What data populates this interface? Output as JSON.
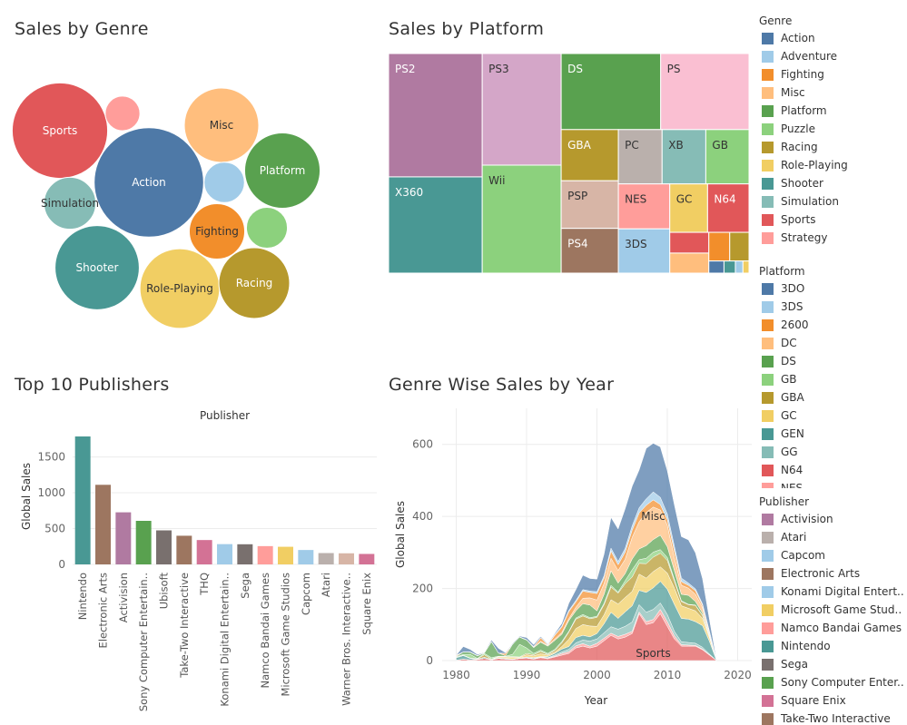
{
  "titles": {
    "genre": "Sales by Genre",
    "platform": "Sales by Platform",
    "publishers": "Top 10 Publishers",
    "year": "Genre Wise Sales by Year"
  },
  "legends": {
    "genre": {
      "title": "Genre",
      "items": [
        {
          "label": "Action",
          "color": "#4e79a7"
        },
        {
          "label": "Adventure",
          "color": "#a0cbe8"
        },
        {
          "label": "Fighting",
          "color": "#f28e2b"
        },
        {
          "label": "Misc",
          "color": "#ffbe7d"
        },
        {
          "label": "Platform",
          "color": "#59a14f"
        },
        {
          "label": "Puzzle",
          "color": "#8cd17d"
        },
        {
          "label": "Racing",
          "color": "#b6992d"
        },
        {
          "label": "Role-Playing",
          "color": "#f1ce63"
        },
        {
          "label": "Shooter",
          "color": "#499894"
        },
        {
          "label": "Simulation",
          "color": "#86bcb6"
        },
        {
          "label": "Sports",
          "color": "#e15759"
        },
        {
          "label": "Strategy",
          "color": "#ff9d9a"
        }
      ]
    },
    "platform": {
      "title": "Platform",
      "items": [
        {
          "label": "3DO",
          "color": "#4e79a7"
        },
        {
          "label": "3DS",
          "color": "#a0cbe8"
        },
        {
          "label": "2600",
          "color": "#f28e2b"
        },
        {
          "label": "DC",
          "color": "#ffbe7d"
        },
        {
          "label": "DS",
          "color": "#59a14f"
        },
        {
          "label": "GB",
          "color": "#8cd17d"
        },
        {
          "label": "GBA",
          "color": "#b6992d"
        },
        {
          "label": "GC",
          "color": "#f1ce63"
        },
        {
          "label": "GEN",
          "color": "#499894"
        },
        {
          "label": "GG",
          "color": "#86bcb6"
        },
        {
          "label": "N64",
          "color": "#e15759"
        },
        {
          "label": "NES",
          "color": "#ff9d9a"
        }
      ]
    },
    "publisher": {
      "title": "Publisher",
      "items": [
        {
          "label": "Activision",
          "color": "#b07aa1"
        },
        {
          "label": "Atari",
          "color": "#bab0ac"
        },
        {
          "label": "Capcom",
          "color": "#a0cbe8"
        },
        {
          "label": "Electronic Arts",
          "color": "#9d7660"
        },
        {
          "label": "Konami Digital Entert..",
          "color": "#a0cbe8"
        },
        {
          "label": "Microsoft Game Stud..",
          "color": "#f1ce63"
        },
        {
          "label": "Namco Bandai Games",
          "color": "#ff9d9a"
        },
        {
          "label": "Nintendo",
          "color": "#499894"
        },
        {
          "label": "Sega",
          "color": "#79706e"
        },
        {
          "label": "Sony Computer Enter..",
          "color": "#59a14f"
        },
        {
          "label": "Square Enix",
          "color": "#d37295"
        },
        {
          "label": "Take-Two Interactive",
          "color": "#9d7660"
        }
      ]
    }
  },
  "chart_data": [
    {
      "type": "bubble",
      "title": "Sales by Genre",
      "items": [
        {
          "label": "Action",
          "value": 1751,
          "color": "#4e79a7"
        },
        {
          "label": "Sports",
          "value": 1331,
          "color": "#e15759"
        },
        {
          "label": "Shooter",
          "value": 1037,
          "color": "#499894"
        },
        {
          "label": "Role-Playing",
          "value": 927,
          "color": "#f1ce63"
        },
        {
          "label": "Platform",
          "value": 831,
          "color": "#59a14f"
        },
        {
          "label": "Misc",
          "value": 810,
          "color": "#ffbe7d"
        },
        {
          "label": "Racing",
          "value": 732,
          "color": "#b6992d"
        },
        {
          "label": "Fighting",
          "value": 449,
          "color": "#f28e2b"
        },
        {
          "label": "Simulation",
          "value": 393,
          "color": "#86bcb6"
        },
        {
          "label": "Puzzle",
          "value": 245,
          "color": "#8cd17d"
        },
        {
          "label": "Adventure",
          "value": 239,
          "color": "#a0cbe8"
        },
        {
          "label": "Strategy",
          "value": 176,
          "color": "#ff9d9a"
        }
      ]
    },
    {
      "type": "treemap",
      "title": "Sales by Platform",
      "items": [
        {
          "label": "PS2",
          "value": 1255,
          "color": "#b07aa1"
        },
        {
          "label": "X360",
          "value": 979,
          "color": "#499894"
        },
        {
          "label": "PS3",
          "value": 957,
          "color": "#d4a6c8"
        },
        {
          "label": "Wii",
          "value": 926,
          "color": "#8cd17d"
        },
        {
          "label": "DS",
          "value": 822,
          "color": "#59a14f"
        },
        {
          "label": "PS",
          "value": 730,
          "color": "#fabfd2"
        },
        {
          "label": "GBA",
          "value": 318,
          "color": "#b6992d"
        },
        {
          "label": "PSP",
          "value": 296,
          "color": "#d7b5a6"
        },
        {
          "label": "PS4",
          "value": 278,
          "color": "#9d7660"
        },
        {
          "label": "PC",
          "value": 258,
          "color": "#bab0ac"
        },
        {
          "label": "XB",
          "value": 258,
          "color": "#86bcb6"
        },
        {
          "label": "GB",
          "value": 255,
          "color": "#8cd17d"
        },
        {
          "label": "NES",
          "value": 251,
          "color": "#ff9d9a"
        },
        {
          "label": "3DS",
          "value": 247,
          "color": "#a0cbe8"
        },
        {
          "label": "GC",
          "value": 199,
          "color": "#f1ce63"
        },
        {
          "label": "N64",
          "value": 218,
          "color": "#e15759"
        },
        {
          "label": "",
          "value": 88,
          "color": "#e15759"
        },
        {
          "label": "",
          "value": 85,
          "color": "#ffbe7d"
        },
        {
          "label": "",
          "value": 65,
          "color": "#f28e2b"
        },
        {
          "label": "",
          "value": 60,
          "color": "#b6992d"
        },
        {
          "label": "",
          "value": 20,
          "color": "#4e79a7"
        },
        {
          "label": "",
          "value": 15,
          "color": "#499894"
        },
        {
          "label": "",
          "value": 10,
          "color": "#a0cbe8"
        },
        {
          "label": "",
          "value": 8,
          "color": "#f1ce63"
        }
      ]
    },
    {
      "type": "bar",
      "title": "Top 10 Publishers",
      "header": "Publisher",
      "ylabel": "Global Sales",
      "ylim": [
        0,
        1900
      ],
      "yticks": [
        0,
        500,
        1000,
        1500
      ],
      "categories": [
        "Nintendo",
        "Electronic Arts",
        "Activision",
        "Sony Computer Entertain..",
        "Ubisoft",
        "Take-Two Interactive",
        "THQ",
        "Konami Digital Entertain..",
        "Sega",
        "Namco Bandai Games",
        "Microsoft Game Studios",
        "Capcom",
        "Atari",
        "Warner Bros. Interactive..",
        "Square Enix"
      ],
      "values": [
        1786,
        1111,
        727,
        608,
        475,
        400,
        340,
        283,
        281,
        255,
        246,
        201,
        158,
        155,
        146
      ],
      "colors": [
        "#499894",
        "#9d7660",
        "#b07aa1",
        "#59a14f",
        "#79706e",
        "#9d7660",
        "#d37295",
        "#a0cbe8",
        "#79706e",
        "#ff9d9a",
        "#f1ce63",
        "#a0cbe8",
        "#bab0ac",
        "#d7b5a6",
        "#d37295"
      ]
    },
    {
      "type": "area",
      "title": "Genre Wise Sales by Year",
      "xlabel": "Year",
      "ylabel": "Global Sales",
      "xlim": [
        1978,
        2022
      ],
      "ylim": [
        0,
        700
      ],
      "xticks": [
        1980,
        1990,
        2000,
        2010,
        2020
      ],
      "yticks": [
        0,
        200,
        400,
        600
      ],
      "x": [
        1980,
        1981,
        1982,
        1983,
        1984,
        1985,
        1986,
        1987,
        1988,
        1989,
        1990,
        1991,
        1992,
        1993,
        1994,
        1995,
        1996,
        1997,
        1998,
        1999,
        2000,
        2001,
        2002,
        2003,
        2004,
        2005,
        2006,
        2007,
        2008,
        2009,
        2010,
        2011,
        2012,
        2013,
        2014,
        2015,
        2016,
        2017
      ],
      "series": [
        {
          "name": "Sports",
          "color": "#e15759",
          "values": [
            1,
            4,
            2,
            3,
            6,
            2,
            6,
            4,
            3,
            6,
            7,
            4,
            8,
            5,
            10,
            15,
            20,
            35,
            40,
            35,
            40,
            55,
            70,
            60,
            65,
            75,
            130,
            100,
            105,
            130,
            95,
            60,
            40,
            40,
            40,
            30,
            15,
            0
          ]
        },
        {
          "name": "Strategy",
          "color": "#ff9d9a",
          "values": [
            0,
            0,
            0,
            0,
            0,
            0,
            0,
            0,
            0,
            0,
            0,
            1,
            1,
            2,
            2,
            5,
            5,
            6,
            7,
            5,
            8,
            7,
            6,
            7,
            8,
            6,
            5,
            8,
            9,
            12,
            13,
            9,
            4,
            3,
            2,
            2,
            1,
            0
          ]
        },
        {
          "name": "Simulation",
          "color": "#86bcb6",
          "values": [
            0,
            0,
            0,
            0,
            0,
            0,
            0,
            0,
            0,
            0,
            1,
            1,
            1,
            1,
            3,
            4,
            6,
            8,
            10,
            14,
            12,
            15,
            18,
            20,
            22,
            26,
            20,
            26,
            28,
            18,
            20,
            12,
            8,
            7,
            6,
            5,
            2,
            0
          ]
        },
        {
          "name": "Shooter",
          "color": "#499894",
          "values": [
            7,
            10,
            4,
            1,
            3,
            1,
            1,
            2,
            1,
            1,
            2,
            2,
            1,
            3,
            5,
            8,
            8,
            15,
            13,
            12,
            15,
            25,
            40,
            30,
            40,
            45,
            40,
            55,
            60,
            60,
            70,
            75,
            65,
            65,
            60,
            60,
            35,
            0
          ]
        },
        {
          "name": "Role-Playing",
          "color": "#f1ce63",
          "values": [
            0,
            0,
            0,
            0,
            0,
            0,
            3,
            4,
            5,
            2,
            6,
            5,
            8,
            4,
            3,
            7,
            20,
            25,
            30,
            30,
            20,
            25,
            35,
            40,
            40,
            40,
            45,
            40,
            45,
            40,
            45,
            45,
            35,
            30,
            30,
            20,
            10,
            0
          ]
        },
        {
          "name": "Racing",
          "color": "#b6992d",
          "values": [
            0,
            1,
            1,
            1,
            7,
            1,
            1,
            1,
            2,
            1,
            4,
            3,
            6,
            2,
            5,
            10,
            20,
            26,
            24,
            20,
            25,
            28,
            35,
            30,
            38,
            40,
            30,
            40,
            40,
            38,
            35,
            20,
            12,
            10,
            15,
            8,
            3,
            0
          ]
        },
        {
          "name": "Puzzle",
          "color": "#8cd17d",
          "values": [
            2,
            2,
            10,
            1,
            4,
            4,
            1,
            1,
            6,
            35,
            15,
            4,
            4,
            3,
            3,
            4,
            2,
            3,
            4,
            3,
            3,
            4,
            5,
            3,
            8,
            20,
            10,
            15,
            14,
            10,
            8,
            4,
            2,
            1,
            1,
            1,
            1,
            0
          ]
        },
        {
          "name": "Platform",
          "color": "#59a14f",
          "values": [
            1,
            7,
            6,
            7,
            1,
            44,
            9,
            2,
            28,
            20,
            22,
            16,
            22,
            20,
            25,
            20,
            30,
            20,
            30,
            35,
            15,
            25,
            40,
            25,
            20,
            30,
            30,
            35,
            35,
            40,
            30,
            25,
            18,
            25,
            10,
            6,
            4,
            0
          ]
        },
        {
          "name": "Misc",
          "color": "#ffbe7d",
          "values": [
            3,
            0,
            1,
            1,
            1,
            0,
            0,
            0,
            0,
            1,
            1,
            1,
            3,
            2,
            4,
            5,
            5,
            10,
            15,
            20,
            30,
            30,
            35,
            35,
            40,
            60,
            75,
            92,
            90,
            70,
            60,
            35,
            25,
            20,
            20,
            15,
            5,
            0
          ]
        },
        {
          "name": "Fighting",
          "color": "#f28e2b",
          "values": [
            1,
            0,
            0,
            0,
            0,
            1,
            0,
            6,
            0,
            0,
            0,
            1,
            9,
            1,
            10,
            15,
            20,
            15,
            20,
            15,
            18,
            15,
            20,
            16,
            20,
            20,
            25,
            20,
            20,
            15,
            15,
            20,
            10,
            8,
            10,
            6,
            3,
            0
          ]
        },
        {
          "name": "Adventure",
          "color": "#a0cbe8",
          "values": [
            0,
            0,
            0,
            0,
            0,
            0,
            0,
            0,
            0,
            0,
            0,
            1,
            1,
            1,
            2,
            3,
            3,
            4,
            4,
            4,
            5,
            6,
            8,
            9,
            10,
            12,
            14,
            18,
            22,
            20,
            16,
            12,
            10,
            6,
            5,
            4,
            2,
            0
          ]
        },
        {
          "name": "Action",
          "color": "#4e79a7",
          "values": [
            0,
            15,
            7,
            3,
            1,
            4,
            13,
            2,
            2,
            2,
            6,
            5,
            3,
            2,
            3,
            7,
            20,
            30,
            40,
            35,
            35,
            60,
            85,
            90,
            110,
            110,
            105,
            140,
            135,
            140,
            120,
            115,
            115,
            120,
            100,
            70,
            32,
            1
          ]
        }
      ],
      "annotations": [
        {
          "label": "Misc",
          "x": 2008,
          "y": 400
        },
        {
          "label": "Sports",
          "x": 2008,
          "y": 20
        }
      ]
    }
  ]
}
